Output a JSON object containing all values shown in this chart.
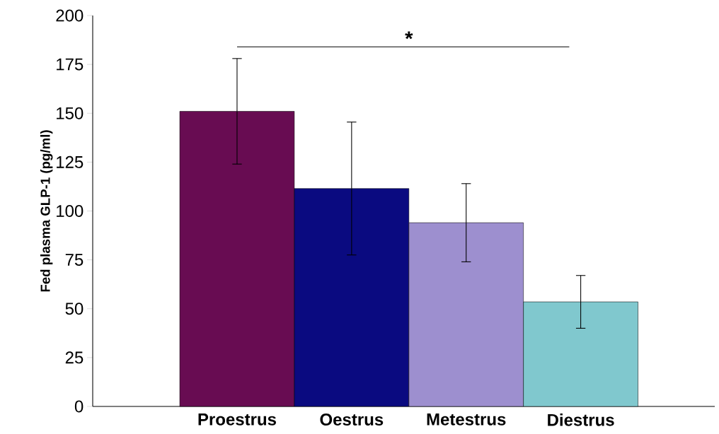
{
  "chart_data": {
    "type": "bar",
    "ylabel": "Fed plasma GLP-1 (pg/ml)",
    "categories": [
      "Proestrus",
      "Oestrus",
      "Metestrus",
      "Diestrus"
    ],
    "values": [
      151,
      111.5,
      94,
      53.5
    ],
    "errors": [
      27,
      34,
      20,
      13.5
    ],
    "colors": [
      "#680c52",
      "#0a0a80",
      "#9d8fcf",
      "#80c8ce"
    ],
    "ylim": [
      0,
      200
    ],
    "yticks": [
      0,
      25,
      50,
      75,
      100,
      125,
      150,
      175,
      200
    ],
    "annotations": [
      "*"
    ]
  }
}
